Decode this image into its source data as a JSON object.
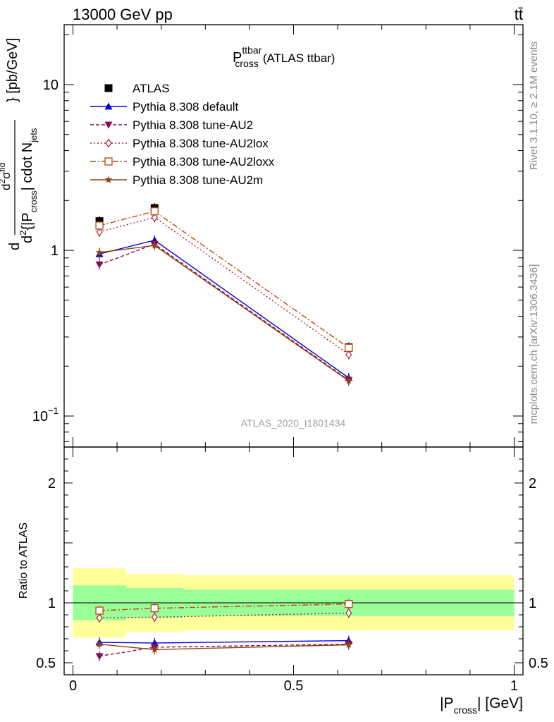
{
  "header": {
    "left": "13000 GeV pp",
    "right": "tt̄"
  },
  "side_labels": {
    "rivet": "Rivet 3.1.10, ≥ 2.1M events",
    "mcplots": "mcplots.cern.ch [arXiv:1306.3436]"
  },
  "colors": {
    "data": "#000000",
    "default": "#0000dd",
    "au2": "#8b0a50",
    "au2lox": "#b22234",
    "au2loxx": "#c0440e",
    "au2m": "#8b4513",
    "band_inner": "#99ff99",
    "band_outer": "#ffff99"
  },
  "chart_data": [
    {
      "type": "line",
      "panel": "main",
      "title_main": "P",
      "title_sup": "ttbar",
      "title_sub": "cross",
      "title_suffix": "(ATLAS ttbar)",
      "ylabel": "d²σ/d²{|P_cross| cdot N_jets} [pb/GeV]",
      "ylabel_parts": {
        "num_d": "d",
        "num_sup": "2",
        "num_sigma": "σ",
        "num_sup2": "fid",
        "den_d": "d",
        "den_sup": "2",
        "den_mid": "{|P",
        "den_sub": "cross",
        "den_mid2": "| cdot N",
        "den_sub2": "jets",
        "rest": "} [pb/GeV]"
      },
      "yscale": "log",
      "ylim": [
        0.065,
        23
      ],
      "xlim": [
        -0.02,
        1.02
      ],
      "yticks": [
        {
          "value": 0.1,
          "base": "10",
          "exp": "−1"
        },
        {
          "value": 1,
          "base": "1",
          "exp": ""
        },
        {
          "value": 10,
          "base": "10",
          "exp": ""
        }
      ],
      "analysis_tag": "ATLAS_2020_I1801434",
      "legend_position": "top-left",
      "x": [
        0.06,
        0.185,
        0.625
      ],
      "series": [
        {
          "name": "ATLAS",
          "key": "data",
          "marker": "square-filled",
          "line": "none",
          "values": [
            1.5,
            1.8,
            0.26
          ]
        },
        {
          "name": "Pythia 8.308 default",
          "key": "default",
          "marker": "triangle-up",
          "line": "solid",
          "values": [
            0.95,
            1.15,
            0.17
          ]
        },
        {
          "name": "Pythia 8.308 tune-AU2",
          "key": "au2",
          "marker": "triangle-down",
          "line": "dashed",
          "values": [
            0.82,
            1.09,
            0.165
          ]
        },
        {
          "name": "Pythia 8.308 tune-AU2lox",
          "key": "au2lox",
          "marker": "diamond-open",
          "line": "dotted",
          "values": [
            1.29,
            1.58,
            0.235
          ]
        },
        {
          "name": "Pythia 8.308 tune-AU2loxx",
          "key": "au2loxx",
          "marker": "square-open",
          "line": "dashdot",
          "values": [
            1.41,
            1.72,
            0.258
          ]
        },
        {
          "name": "Pythia 8.308 tune-AU2m",
          "key": "au2m",
          "marker": "star",
          "line": "solid",
          "values": [
            0.97,
            1.07,
            0.163
          ]
        }
      ]
    },
    {
      "type": "line",
      "panel": "ratio",
      "ylabel": "Ratio to ATLAS",
      "xlabel": "|P_cross| [GeV]",
      "xlabel_parts": {
        "pre": "|P",
        "sub": "cross",
        "post": "| [GeV]"
      },
      "ylim": [
        0.4,
        2.3
      ],
      "xlim": [
        -0.02,
        1.02
      ],
      "yticks": [
        "0.5",
        "1",
        "2"
      ],
      "xticks": [
        "0",
        "0.5",
        "1"
      ],
      "bands": [
        {
          "x_from": 0.0,
          "x_to": 0.12,
          "inner": [
            0.855,
            1.145
          ],
          "outer": [
            0.71,
            1.29
          ]
        },
        {
          "x_from": 0.12,
          "x_to": 0.25,
          "inner": [
            0.875,
            1.125
          ],
          "outer": [
            0.76,
            1.24
          ]
        },
        {
          "x_from": 0.25,
          "x_to": 1.0,
          "inner": [
            0.89,
            1.11
          ],
          "outer": [
            0.77,
            1.23
          ]
        }
      ],
      "x": [
        0.06,
        0.185,
        0.625
      ],
      "series": [
        {
          "name": "Pythia 8.308 default",
          "key": "default",
          "marker": "triangle-up",
          "line": "solid",
          "values": [
            0.67,
            0.665,
            0.685
          ]
        },
        {
          "name": "Pythia 8.308 tune-AU2",
          "key": "au2",
          "marker": "triangle-down",
          "line": "dashed",
          "values": [
            0.555,
            0.63,
            0.655
          ]
        },
        {
          "name": "Pythia 8.308 tune-AU2lox",
          "key": "au2lox",
          "marker": "diamond-open",
          "line": "dotted",
          "values": [
            0.875,
            0.88,
            0.915
          ]
        },
        {
          "name": "Pythia 8.308 tune-AU2loxx",
          "key": "au2loxx",
          "marker": "square-open",
          "line": "dashdot",
          "values": [
            0.935,
            0.955,
            0.99
          ]
        },
        {
          "name": "Pythia 8.308 tune-AU2m",
          "key": "au2m",
          "marker": "star",
          "line": "solid",
          "values": [
            0.655,
            0.61,
            0.65
          ]
        }
      ]
    }
  ]
}
